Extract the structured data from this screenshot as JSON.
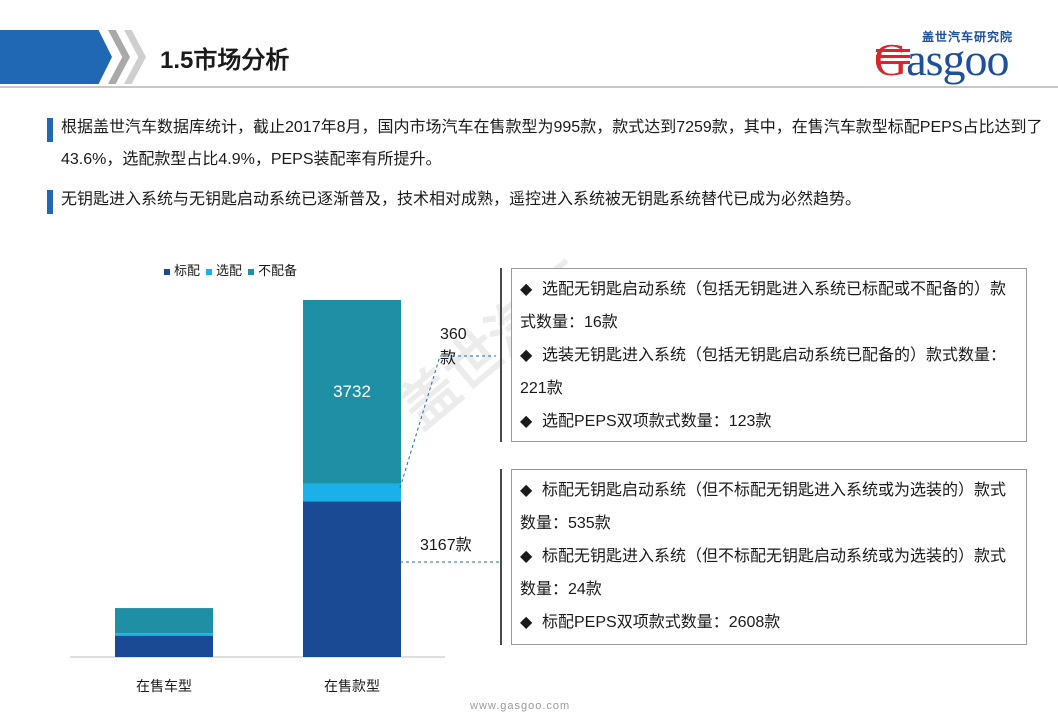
{
  "header": {
    "title": "1.5市场分析",
    "logo_cn": "盖世汽车研究院",
    "logo_en_first": "G",
    "logo_en_rest": "asgoo"
  },
  "paragraphs": [
    "根据盖世汽车数据库统计，截止2017年8月，国内市场汽车在售款型为995款，款式达到7259款，其中，在售汽车款型标配PEPS占比达到了43.6%，选配款型占比4.9%，PEPS装配率有所提升。",
    "无钥匙进入系统与无钥匙启动系统已逐渐普及，技术相对成熟，遥控进入系统被无钥匙系统替代已成为必然趋势。"
  ],
  "chart_data": {
    "type": "bar",
    "stacked": true,
    "categories": [
      "在售车型",
      "在售款型"
    ],
    "series": [
      {
        "name": "标配",
        "color": "#1b4a94",
        "values": [
          434,
          3167
        ]
      },
      {
        "name": "选配",
        "color": "#1ab0e8",
        "values": [
          49,
          360
        ]
      },
      {
        "name": "不配备",
        "color": "#1f8fa5",
        "values": [
          512,
          3732
        ]
      }
    ],
    "ylim": [
      0,
      7259
    ],
    "grid": false,
    "legend": "top-left",
    "segment_labels": [
      {
        "category": "在售款型",
        "series": "不配备",
        "text": "3732"
      }
    ],
    "annotations": [
      "360款",
      "3167款"
    ]
  },
  "boxes": [
    {
      "items": [
        "选配无钥匙启动系统（包括无钥匙进入系统已标配或不配备的）款式数量：16款",
        "选装无钥匙进入系统（包括无钥匙启动系统已配备的）款式数量：221款",
        "选配PEPS双项款式数量：123款"
      ]
    },
    {
      "items": [
        "标配无钥匙启动系统（但不标配无钥匙进入系统或为选装的）款式数量：535款",
        "标配无钥匙进入系统（但不标配无钥匙启动系统或为选装的）款式数量：24款",
        "标配PEPS双项款式数量：2608款"
      ]
    }
  ],
  "bullet_glyph": "◆",
  "footer": "www.gasgoo.com",
  "watermark": "盖世汽车"
}
